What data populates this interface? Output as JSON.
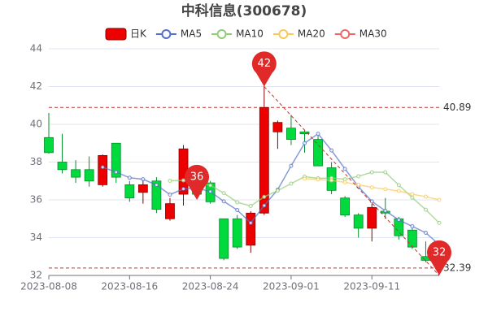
{
  "chart_data": {
    "type": "candlestick",
    "title": "中科信息(300678)",
    "categories": [
      "2023-08-08",
      null,
      null,
      null,
      null,
      null,
      "2023-08-16",
      null,
      null,
      null,
      null,
      null,
      "2023-08-24",
      null,
      null,
      null,
      null,
      null,
      "2023-09-01",
      null,
      null,
      null,
      null,
      null,
      "2023-09-11",
      null,
      null,
      null,
      null,
      null
    ],
    "candles": {
      "name": "日K",
      "color_up": "#ec0000",
      "color_down": "#00da3c",
      "open": [
        39.3,
        38.0,
        37.6,
        37.6,
        36.8,
        39.0,
        36.8,
        36.4,
        37.0,
        35.0,
        36.3,
        36.7,
        36.9,
        35.0,
        35.0,
        33.6,
        35.3,
        39.6,
        39.8,
        39.6,
        39.2,
        37.7,
        36.1,
        35.2,
        34.5,
        35.4,
        35.0,
        34.4,
        33.0,
        32.6
      ],
      "close": [
        38.5,
        37.6,
        37.2,
        37.0,
        38.35,
        37.2,
        36.1,
        36.8,
        35.5,
        35.8,
        38.7,
        36.3,
        35.9,
        32.9,
        33.5,
        35.3,
        40.89,
        40.1,
        39.2,
        39.5,
        37.8,
        36.5,
        35.2,
        34.5,
        35.6,
        35.3,
        34.1,
        33.5,
        32.8,
        32.45
      ],
      "low": [
        38.45,
        37.4,
        36.9,
        36.7,
        36.7,
        36.9,
        35.9,
        35.8,
        35.3,
        34.9,
        35.7,
        36.2,
        35.8,
        32.8,
        33.4,
        33.2,
        35.2,
        38.7,
        38.9,
        38.5,
        37.8,
        36.3,
        35.1,
        34.0,
        33.8,
        35.0,
        33.9,
        33.4,
        32.7,
        32.39
      ],
      "high": [
        40.6,
        39.5,
        38.1,
        38.3,
        38.4,
        39.0,
        37.0,
        37.1,
        37.2,
        36.1,
        38.9,
        37.0,
        37.0,
        35.0,
        35.2,
        35.4,
        42.3,
        40.2,
        40.5,
        39.7,
        39.4,
        38.0,
        36.2,
        35.3,
        35.8,
        36.1,
        35.1,
        34.5,
        33.8,
        32.8
      ]
    },
    "series": [
      {
        "name": "MA5",
        "color": "#5470c6",
        "values": [
          null,
          null,
          null,
          null,
          37.73,
          37.47,
          37.17,
          37.09,
          36.79,
          36.28,
          36.58,
          36.62,
          36.44,
          35.92,
          35.46,
          34.78,
          35.7,
          36.54,
          37.8,
          39.0,
          39.5,
          38.62,
          37.64,
          36.7,
          35.92,
          35.42,
          34.94,
          34.6,
          34.26,
          33.63
        ]
      },
      {
        "name": "MA10",
        "color": "#91cc75",
        "values": [
          null,
          null,
          null,
          null,
          null,
          null,
          null,
          null,
          null,
          37.01,
          37.03,
          36.9,
          36.77,
          36.36,
          35.87,
          35.68,
          36.16,
          36.49,
          36.86,
          37.23,
          37.14,
          37.16,
          37.09,
          37.25,
          37.46,
          37.46,
          36.78,
          36.12,
          35.48,
          34.78
        ]
      },
      {
        "name": "MA20",
        "color": "#fac858",
        "values": [
          null,
          null,
          null,
          null,
          null,
          null,
          null,
          null,
          null,
          null,
          null,
          null,
          null,
          null,
          null,
          null,
          null,
          null,
          null,
          37.12,
          37.08,
          37.03,
          36.93,
          36.8,
          36.66,
          36.57,
          36.47,
          36.3,
          36.17,
          36.0
        ]
      },
      {
        "name": "MA30",
        "color": "#ee6666",
        "values": [
          null,
          null,
          null,
          null,
          null,
          null,
          null,
          null,
          null,
          null,
          null,
          null,
          null,
          null,
          null,
          null,
          null,
          null,
          null,
          null,
          null,
          null,
          null,
          null,
          null,
          null,
          null,
          null,
          null,
          null
        ]
      }
    ],
    "ylim": [
      32,
      44
    ],
    "yticks": [
      32,
      34,
      36,
      38,
      40,
      42,
      44
    ],
    "grid": true,
    "mark_lines": [
      40.89,
      32.39
    ],
    "annotations": [
      {
        "value": 42,
        "index": 16
      },
      {
        "value": 36,
        "index": 11
      },
      {
        "value": 32,
        "index": 29
      }
    ]
  }
}
